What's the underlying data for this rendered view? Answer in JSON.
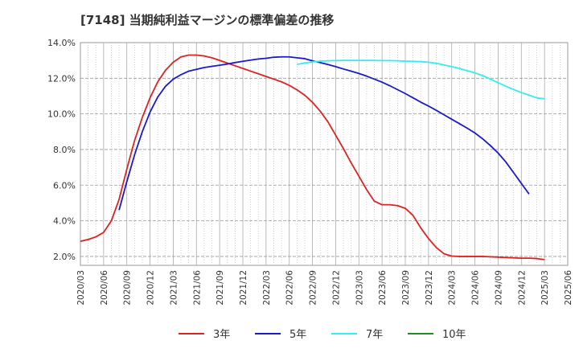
{
  "chart_data": {
    "type": "line",
    "title": "[7148]  当期純利益マージンの標準偏差の推移",
    "xlabel": "",
    "ylabel": "",
    "x_categories": [
      "2020/03",
      "2020/06",
      "2020/09",
      "2020/12",
      "2021/03",
      "2021/06",
      "2021/09",
      "2021/12",
      "2022/03",
      "2022/06",
      "2022/09",
      "2022/12",
      "2023/03",
      "2023/06",
      "2023/09",
      "2023/12",
      "2024/03",
      "2024/06",
      "2024/09",
      "2024/12",
      "2025/03",
      "2025/06"
    ],
    "y_ticks": [
      "2.0%",
      "4.0%",
      "6.0%",
      "8.0%",
      "10.0%",
      "12.0%",
      "14.0%"
    ],
    "ylim": [
      1.5,
      14.0
    ],
    "grid": true,
    "legend_position": "bottom",
    "series": [
      {
        "name": "3年",
        "color": "#dd2222",
        "points": [
          [
            "2020/03",
            2.85
          ],
          [
            "2020/04",
            2.95
          ],
          [
            "2020/05",
            3.1
          ],
          [
            "2020/06",
            3.35
          ],
          [
            "2020/07",
            4.0
          ],
          [
            "2020/08",
            5.2
          ],
          [
            "2020/09",
            6.9
          ],
          [
            "2020/10",
            8.5
          ],
          [
            "2020/11",
            9.8
          ],
          [
            "2020/12",
            10.9
          ],
          [
            "2021/01",
            11.8
          ],
          [
            "2021/02",
            12.45
          ],
          [
            "2021/03",
            12.9
          ],
          [
            "2021/04",
            13.2
          ],
          [
            "2021/05",
            13.3
          ],
          [
            "2021/06",
            13.3
          ],
          [
            "2021/07",
            13.25
          ],
          [
            "2021/08",
            13.15
          ],
          [
            "2021/09",
            13.0
          ],
          [
            "2021/10",
            12.85
          ],
          [
            "2021/11",
            12.7
          ],
          [
            "2021/12",
            12.55
          ],
          [
            "2022/01",
            12.4
          ],
          [
            "2022/02",
            12.25
          ],
          [
            "2022/03",
            12.1
          ],
          [
            "2022/04",
            11.95
          ],
          [
            "2022/05",
            11.8
          ],
          [
            "2022/06",
            11.6
          ],
          [
            "2022/07",
            11.35
          ],
          [
            "2022/08",
            11.05
          ],
          [
            "2022/09",
            10.65
          ],
          [
            "2022/10",
            10.15
          ],
          [
            "2022/11",
            9.55
          ],
          [
            "2022/12",
            8.8
          ],
          [
            "2023/01",
            8.05
          ],
          [
            "2023/02",
            7.25
          ],
          [
            "2023/03",
            6.5
          ],
          [
            "2023/04",
            5.75
          ],
          [
            "2023/05",
            5.1
          ],
          [
            "2023/06",
            4.9
          ],
          [
            "2023/07",
            4.9
          ],
          [
            "2023/08",
            4.85
          ],
          [
            "2023/09",
            4.7
          ],
          [
            "2023/10",
            4.3
          ],
          [
            "2023/11",
            3.6
          ],
          [
            "2023/12",
            3.0
          ],
          [
            "2024/01",
            2.5
          ],
          [
            "2024/02",
            2.15
          ],
          [
            "2024/03",
            2.02
          ],
          [
            "2024/04",
            2.0
          ],
          [
            "2024/05",
            2.0
          ],
          [
            "2024/06",
            2.0
          ],
          [
            "2024/07",
            2.0
          ],
          [
            "2024/08",
            1.98
          ],
          [
            "2024/09",
            1.96
          ],
          [
            "2024/10",
            1.94
          ],
          [
            "2024/11",
            1.92
          ],
          [
            "2024/12",
            1.9
          ],
          [
            "2025/01",
            1.9
          ],
          [
            "2025/02",
            1.88
          ],
          [
            "2025/03",
            1.82
          ]
        ]
      },
      {
        "name": "5年",
        "color": "#1a1acc",
        "points": [
          [
            "2020/08",
            4.6
          ],
          [
            "2020/09",
            6.2
          ],
          [
            "2020/10",
            7.7
          ],
          [
            "2020/11",
            9.0
          ],
          [
            "2020/12",
            10.1
          ],
          [
            "2021/01",
            10.95
          ],
          [
            "2021/02",
            11.55
          ],
          [
            "2021/03",
            11.95
          ],
          [
            "2021/04",
            12.2
          ],
          [
            "2021/05",
            12.4
          ],
          [
            "2021/06",
            12.5
          ],
          [
            "2021/07",
            12.6
          ],
          [
            "2021/08",
            12.67
          ],
          [
            "2021/09",
            12.73
          ],
          [
            "2021/10",
            12.8
          ],
          [
            "2021/11",
            12.88
          ],
          [
            "2021/12",
            12.95
          ],
          [
            "2022/01",
            13.02
          ],
          [
            "2022/02",
            13.08
          ],
          [
            "2022/03",
            13.12
          ],
          [
            "2022/04",
            13.18
          ],
          [
            "2022/05",
            13.2
          ],
          [
            "2022/06",
            13.2
          ],
          [
            "2022/07",
            13.15
          ],
          [
            "2022/08",
            13.1
          ],
          [
            "2022/09",
            12.98
          ],
          [
            "2022/10",
            12.88
          ],
          [
            "2022/11",
            12.77
          ],
          [
            "2022/12",
            12.65
          ],
          [
            "2023/01",
            12.52
          ],
          [
            "2023/02",
            12.4
          ],
          [
            "2023/03",
            12.27
          ],
          [
            "2023/04",
            12.12
          ],
          [
            "2023/05",
            11.95
          ],
          [
            "2023/06",
            11.78
          ],
          [
            "2023/07",
            11.58
          ],
          [
            "2023/08",
            11.36
          ],
          [
            "2023/09",
            11.14
          ],
          [
            "2023/10",
            10.9
          ],
          [
            "2023/11",
            10.66
          ],
          [
            "2023/12",
            10.44
          ],
          [
            "2024/01",
            10.2
          ],
          [
            "2024/02",
            9.95
          ],
          [
            "2024/03",
            9.7
          ],
          [
            "2024/04",
            9.45
          ],
          [
            "2024/05",
            9.2
          ],
          [
            "2024/06",
            8.93
          ],
          [
            "2024/07",
            8.6
          ],
          [
            "2024/08",
            8.22
          ],
          [
            "2024/09",
            7.8
          ],
          [
            "2024/10",
            7.3
          ],
          [
            "2024/11",
            6.7
          ],
          [
            "2024/12",
            6.1
          ],
          [
            "2025/01",
            5.5
          ]
        ]
      },
      {
        "name": "7年",
        "color": "#33eeee",
        "points": [
          [
            "2022/07",
            12.78
          ],
          [
            "2022/08",
            12.85
          ],
          [
            "2022/09",
            12.92
          ],
          [
            "2022/10",
            12.96
          ],
          [
            "2022/11",
            12.98
          ],
          [
            "2022/12",
            12.99
          ],
          [
            "2023/01",
            13.0
          ],
          [
            "2023/02",
            13.0
          ],
          [
            "2023/03",
            13.0
          ],
          [
            "2023/04",
            13.0
          ],
          [
            "2023/05",
            13.0
          ],
          [
            "2023/06",
            12.99
          ],
          [
            "2023/07",
            12.99
          ],
          [
            "2023/08",
            12.98
          ],
          [
            "2023/09",
            12.96
          ],
          [
            "2023/10",
            12.95
          ],
          [
            "2023/11",
            12.93
          ],
          [
            "2023/12",
            12.9
          ],
          [
            "2024/01",
            12.84
          ],
          [
            "2024/02",
            12.75
          ],
          [
            "2024/03",
            12.65
          ],
          [
            "2024/04",
            12.55
          ],
          [
            "2024/05",
            12.42
          ],
          [
            "2024/06",
            12.3
          ],
          [
            "2024/07",
            12.15
          ],
          [
            "2024/08",
            11.95
          ],
          [
            "2024/09",
            11.75
          ],
          [
            "2024/10",
            11.55
          ],
          [
            "2024/11",
            11.37
          ],
          [
            "2024/12",
            11.2
          ],
          [
            "2025/01",
            11.05
          ],
          [
            "2025/02",
            10.9
          ],
          [
            "2025/03",
            10.85
          ]
        ]
      },
      {
        "name": "10年",
        "color": "#228b22",
        "points": []
      }
    ]
  }
}
